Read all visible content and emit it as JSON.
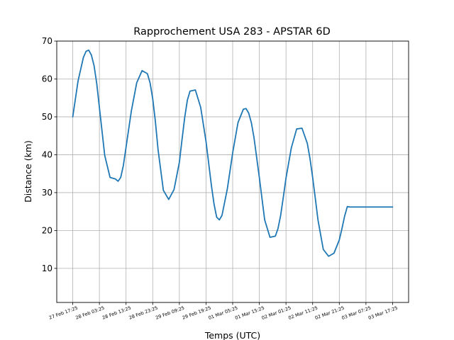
{
  "chart_data": {
    "type": "line",
    "title": "Rapprochement USA 283 - APSTAR 6D",
    "xlabel": "Temps (UTC)",
    "ylabel": "Distance (km)",
    "ylim": [
      1,
      70
    ],
    "yticks": [
      10,
      20,
      30,
      40,
      50,
      60,
      70
    ],
    "xticks": [
      "27 Feb 17:25",
      "28 Feb 03:25",
      "28 Feb 13:25",
      "28 Feb 23:25",
      "29 Feb 09:25",
      "29 Feb 19:25",
      "01 Mar 05:25",
      "01 Mar 15:25",
      "02 Mar 01:25",
      "02 Mar 11:25",
      "02 Mar 21:25",
      "03 Mar 07:25",
      "03 Mar 17:25"
    ],
    "x_unit": "hours after 27 Feb 17:25",
    "xlim": [
      -6,
      126
    ],
    "grid": true,
    "color": "#1f77b4",
    "series": [
      {
        "name": "",
        "x": [
          0,
          2,
          4,
          5,
          6,
          7,
          8,
          9,
          10,
          12,
          14,
          16,
          17,
          18,
          19,
          20,
          22,
          24,
          26,
          28,
          29,
          30,
          31,
          32,
          34,
          36,
          38,
          40,
          41,
          42,
          43,
          44,
          46,
          48,
          50,
          52,
          53,
          54,
          55,
          56,
          58,
          60,
          62,
          64,
          65,
          66,
          67,
          68,
          70,
          72,
          74,
          76,
          77,
          78,
          79,
          80,
          82,
          84,
          86,
          88,
          89,
          90,
          91,
          92,
          94,
          96,
          98,
          100,
          101,
          102,
          103,
          104,
          106,
          108,
          110,
          112,
          113,
          114,
          115,
          116,
          118,
          120
        ],
        "y": [
          50.0,
          59.5,
          65.7,
          67.3,
          67.6,
          66.3,
          63.5,
          58.8,
          52.5,
          39.8,
          34.0,
          33.6,
          33.0,
          34.0,
          37.2,
          42.0,
          51.6,
          59.0,
          62.2,
          61.4,
          59.0,
          54.8,
          48.8,
          41.4,
          30.6,
          28.2,
          30.8,
          38.0,
          44.0,
          49.8,
          54.4,
          56.8,
          57.1,
          52.5,
          43.5,
          32.0,
          27.0,
          23.5,
          22.8,
          24.0,
          31.0,
          40.5,
          48.5,
          52.0,
          52.2,
          51.0,
          48.5,
          44.5,
          34.0,
          22.8,
          18.2,
          18.5,
          20.5,
          24.0,
          28.8,
          33.8,
          41.8,
          46.8,
          47.0,
          43.0,
          39.0,
          34.0,
          28.5,
          22.8,
          15.0,
          13.2,
          14.0,
          17.5,
          20.5,
          23.8,
          26.3,
          26.2,
          26.2,
          26.2,
          26.2,
          26.2,
          26.2,
          26.2,
          26.2,
          26.2,
          26.2,
          26.2
        ]
      }
    ]
  }
}
